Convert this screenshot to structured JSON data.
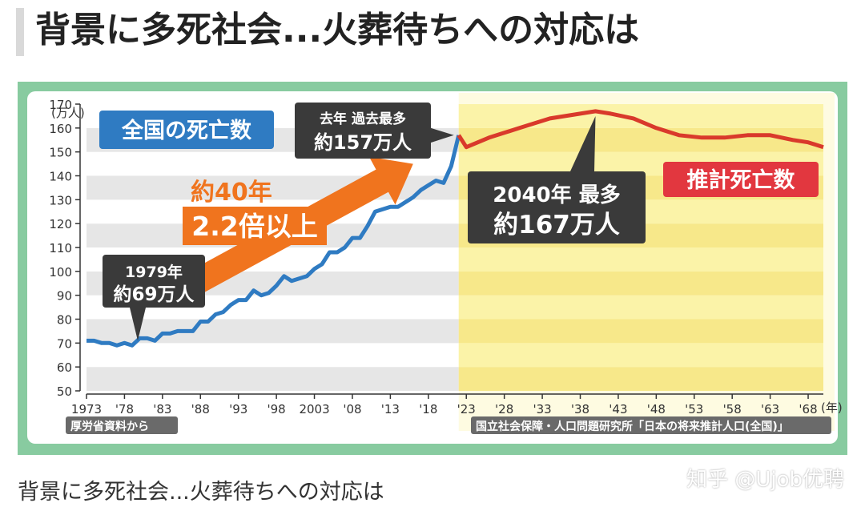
{
  "headline": "背景に多死社会...火葬待ちへの対応は",
  "caption": "背景に多死社会...火葬待ちへの対応は",
  "watermark": "知乎 @Ujob优聘",
  "colors": {
    "background_frame": "#88cba0",
    "plot_bg": "#ffffff",
    "stripe_gray": "#e6e6e6",
    "projection_bg": "#fbf3a8",
    "projection_stripe": "#f5e27a",
    "actual_line": "#2f7bc2",
    "projected_line": "#d9392b",
    "arrow": "#f0741e",
    "callout_dark": "#3a3a3a",
    "label_blue": "#2f7bc2",
    "label_red": "#e2373f"
  },
  "chart_data": {
    "type": "line",
    "title": "全国の死亡数",
    "ylabel_unit": "(万人)",
    "xlabel_unit": "(年)",
    "ylim": [
      50,
      170
    ],
    "yticks": [
      50,
      60,
      70,
      80,
      90,
      100,
      110,
      120,
      130,
      140,
      150,
      160,
      170
    ],
    "xlim": [
      1973,
      2070
    ],
    "xtick_values": [
      1973,
      1978,
      1983,
      1988,
      1993,
      1998,
      2003,
      2008,
      2013,
      2018,
      2023,
      2028,
      2033,
      2038,
      2043,
      2048,
      2053,
      2058,
      2063,
      2068
    ],
    "xtick_labels": [
      "1973",
      "'78",
      "'83",
      "'88",
      "'93",
      "'98",
      "2003",
      "'08",
      "'13",
      "'18",
      "'23",
      "'28",
      "'33",
      "'38",
      "'43",
      "'48",
      "'53",
      "'58",
      "'63",
      "'68"
    ],
    "projection_start": 2022,
    "grid": "horizontal bands",
    "series": [
      {
        "name": "全国の死亡数",
        "x": [
          1973,
          1974,
          1975,
          1976,
          1977,
          1978,
          1979,
          1980,
          1981,
          1982,
          1983,
          1984,
          1985,
          1986,
          1987,
          1988,
          1989,
          1990,
          1991,
          1992,
          1993,
          1994,
          1995,
          1996,
          1997,
          1998,
          1999,
          2000,
          2001,
          2002,
          2003,
          2004,
          2005,
          2006,
          2007,
          2008,
          2009,
          2010,
          2011,
          2012,
          2013,
          2014,
          2015,
          2016,
          2017,
          2018,
          2019,
          2020,
          2021,
          2022
        ],
        "values": [
          71,
          71,
          70,
          70,
          69,
          70,
          69,
          72,
          72,
          71,
          74,
          74,
          75,
          75,
          75,
          79,
          79,
          82,
          83,
          86,
          88,
          88,
          92,
          90,
          91,
          94,
          98,
          96,
          97,
          98,
          101,
          103,
          108,
          108,
          110,
          114,
          114,
          119,
          125,
          126,
          127,
          127,
          129,
          131,
          134,
          136,
          138,
          137,
          144,
          157
        ]
      },
      {
        "name": "推計死亡数",
        "x": [
          2022,
          2023,
          2026,
          2030,
          2034,
          2038,
          2040,
          2042,
          2045,
          2048,
          2051,
          2054,
          2057,
          2060,
          2063,
          2066,
          2068,
          2070
        ],
        "values": [
          157,
          152,
          156,
          160,
          164,
          166,
          167,
          166,
          164,
          160,
          157,
          156,
          156,
          157,
          157,
          155,
          154,
          152
        ]
      }
    ],
    "annotations": {
      "title_label": "全国の死亡数",
      "projection_label": "推計死亡数",
      "callout_1979_line1": "1979年",
      "callout_1979_line2": "約69万人",
      "callout_last_line1": "去年 過去最多",
      "callout_last_line2": "約157万人",
      "callout_2040_line1": "2040年 最多",
      "callout_2040_line2": "約167万人",
      "arrow_line1": "約40年",
      "arrow_line2": "2.2倍以上",
      "source_left": "厚労省資料から",
      "source_right": "国立社会保障・人口問題研究所「日本の将来推計人口(全国)」"
    }
  }
}
